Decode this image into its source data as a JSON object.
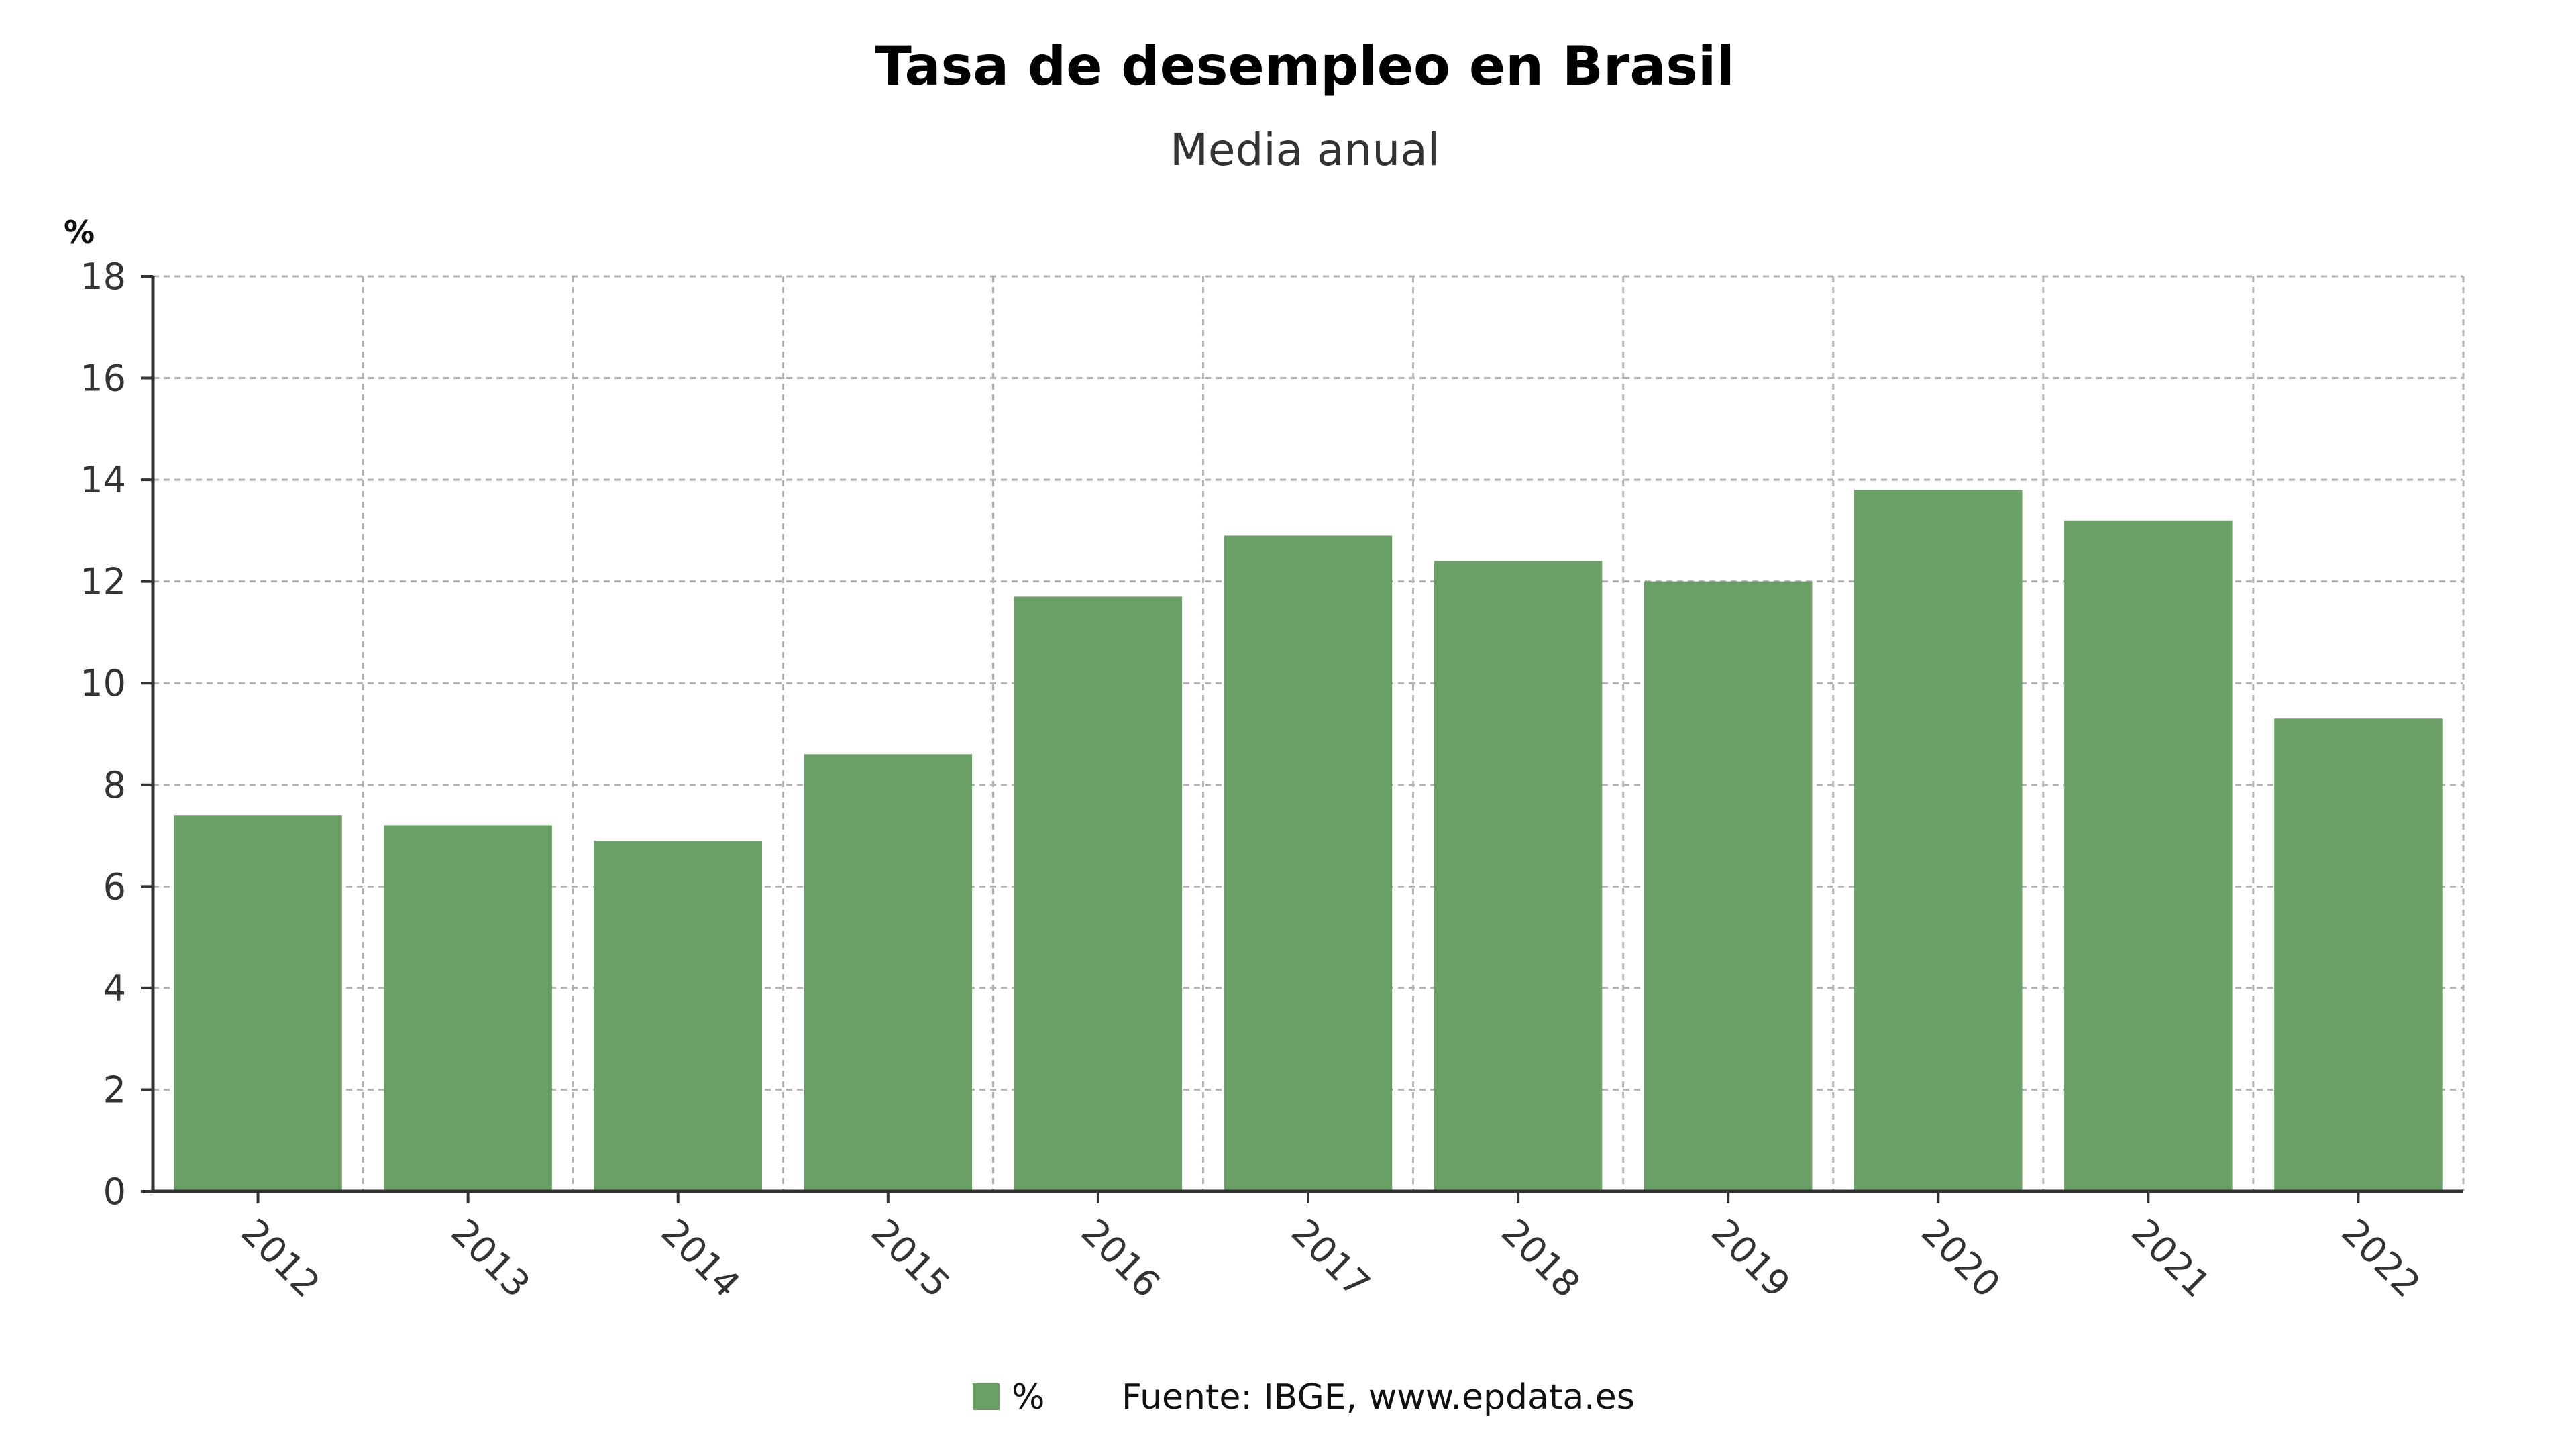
{
  "chart_data": {
    "type": "bar",
    "title": "Tasa de desempleo en Brasil",
    "subtitle": "Media anual",
    "ylabel": "%",
    "xlabel": "",
    "categories": [
      "2012",
      "2013",
      "2014",
      "2015",
      "2016",
      "2017",
      "2018",
      "2019",
      "2020",
      "2021",
      "2022"
    ],
    "series": [
      {
        "name": "%",
        "values": [
          7.4,
          7.2,
          6.9,
          8.6,
          11.7,
          12.9,
          12.4,
          12.0,
          13.8,
          13.2,
          9.3
        ],
        "color": "#6a9f66"
      }
    ],
    "ylim": [
      0,
      18
    ],
    "yticks": [
      0,
      2,
      4,
      6,
      8,
      10,
      12,
      14,
      16,
      18
    ],
    "grid": true,
    "legend_position": "bottom-center",
    "source": "Fuente: IBGE, www.epdata.es"
  }
}
